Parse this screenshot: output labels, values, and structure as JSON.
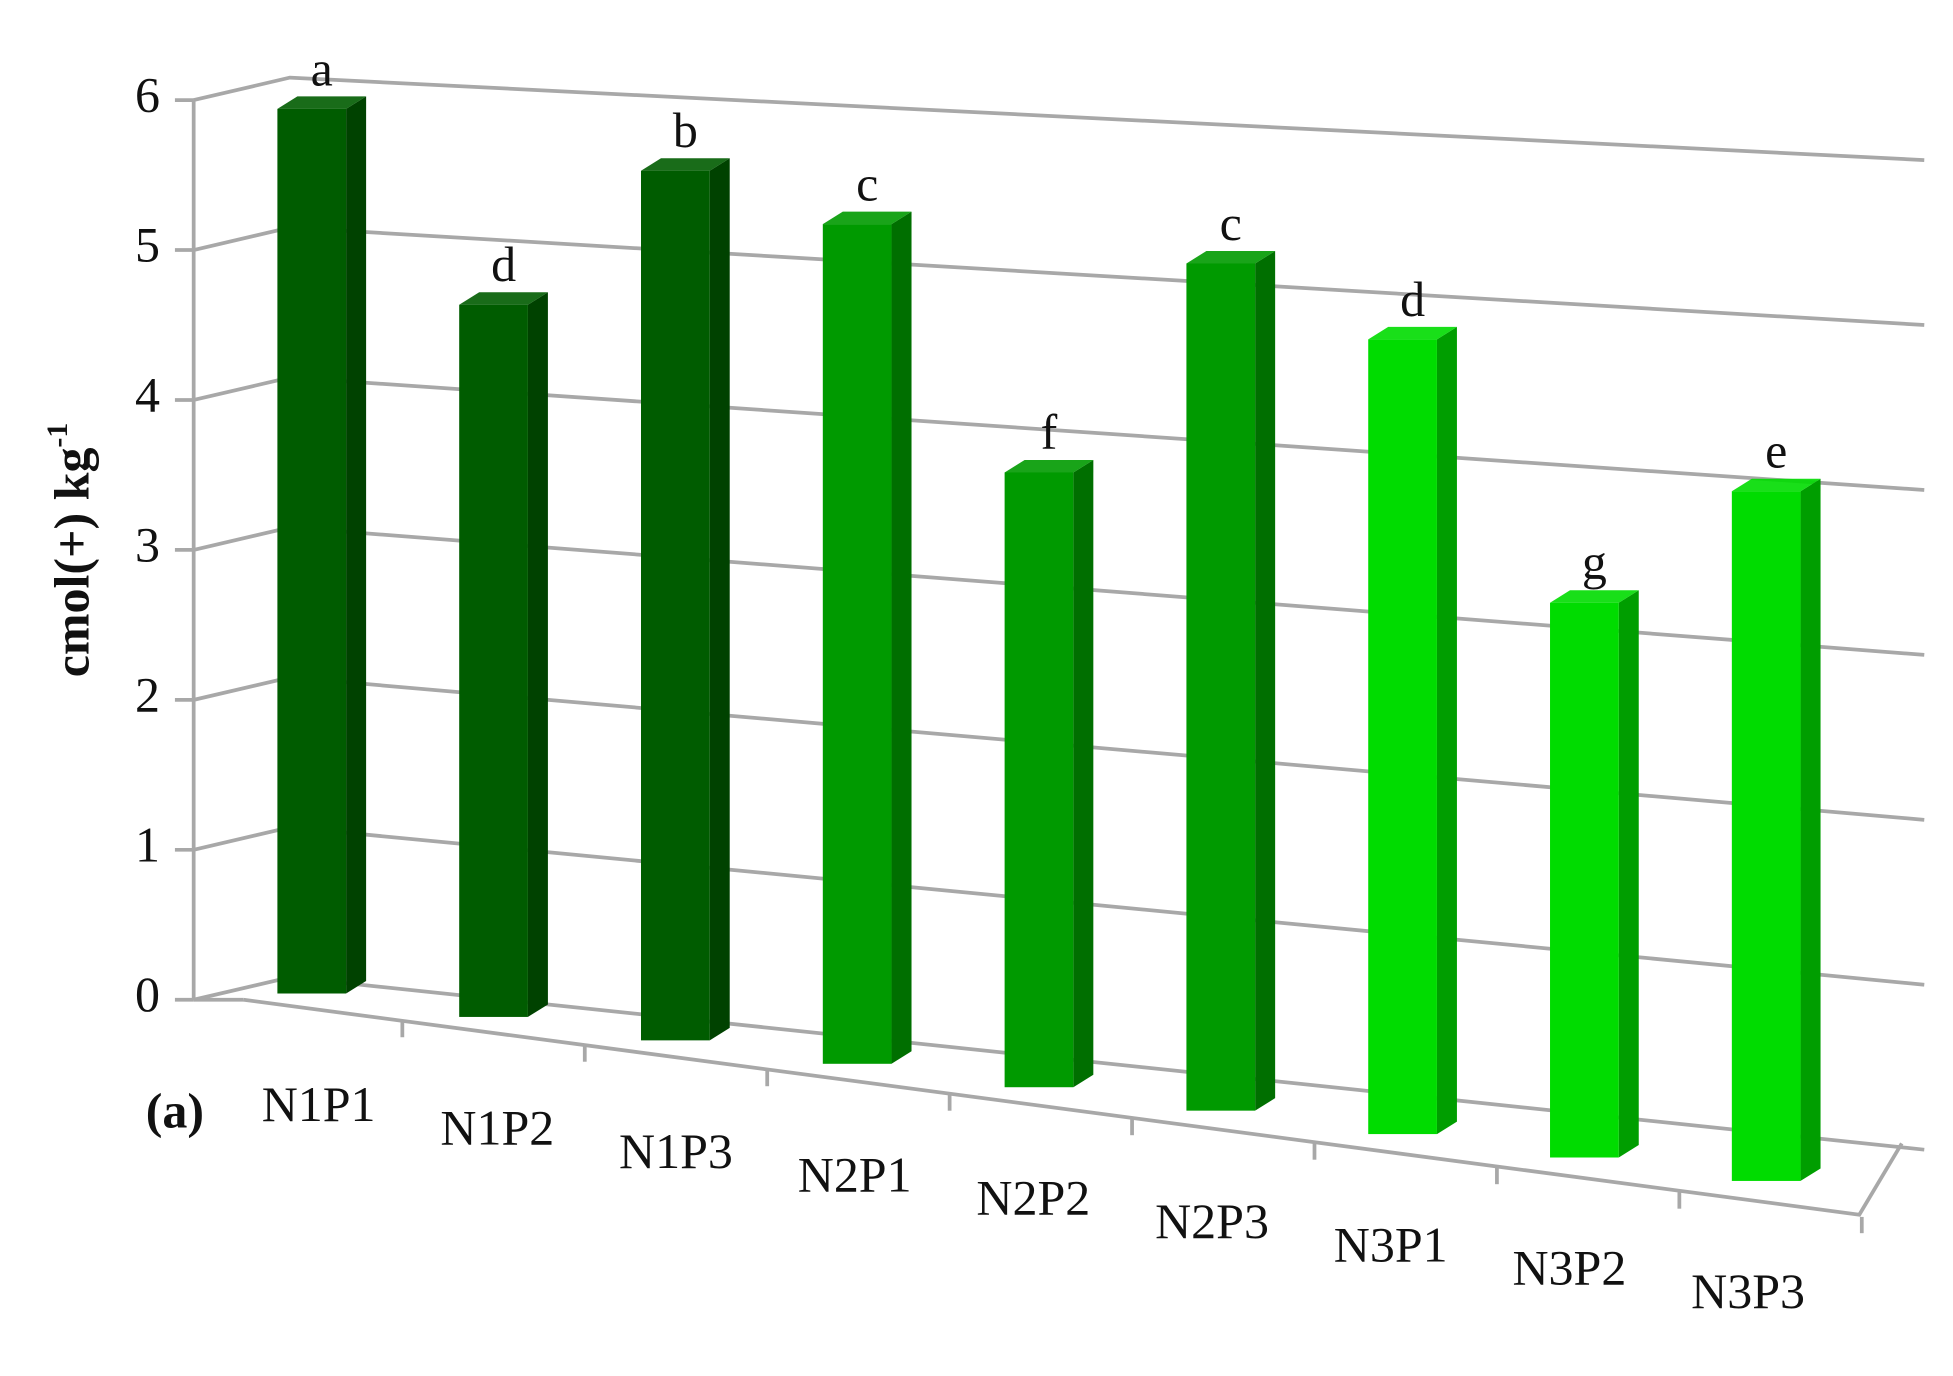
{
  "chart_data": {
    "type": "bar3d",
    "panel_label": "(a)",
    "ylabel": "cmol(+) kg",
    "ylabel_sup": "-1",
    "categories": [
      "N1P1",
      "N1P2",
      "N1P3",
      "N2P1",
      "N2P2",
      "N2P3",
      "N3P1",
      "N3P2",
      "N3P3"
    ],
    "values": [
      5.9,
      4.75,
      5.8,
      5.6,
      4.1,
      5.65,
      5.3,
      3.7,
      4.6
    ],
    "annotations": [
      "a",
      "d",
      "b",
      "c",
      "f",
      "c",
      "d",
      "g",
      "e"
    ],
    "colors": [
      "#005c00",
      "#005c00",
      "#005c00",
      "#009a00",
      "#009a00",
      "#009a00",
      "#00dc00",
      "#00dc00",
      "#00dc00"
    ],
    "ylim": [
      0,
      6
    ],
    "yticks": [
      0,
      1,
      2,
      3,
      4,
      5,
      6
    ],
    "grid": true
  }
}
